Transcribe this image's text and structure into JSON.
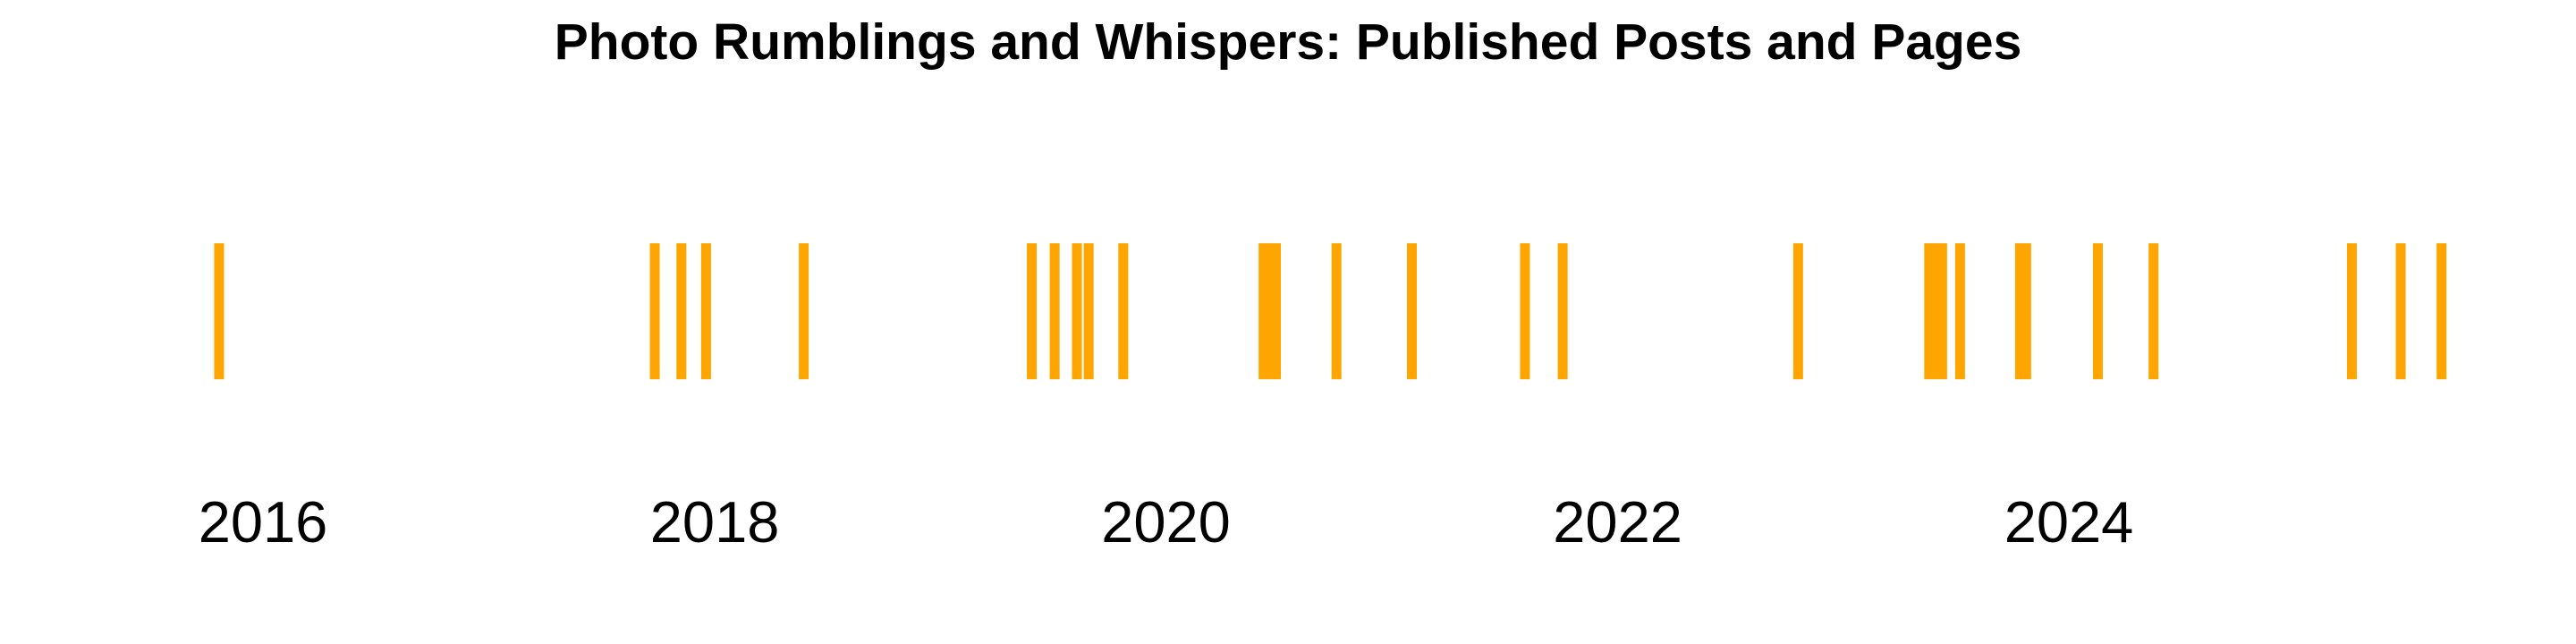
{
  "chart_data": {
    "type": "timeline",
    "title": "Photo Rumblings and Whispers: Published Posts and Pages",
    "xlabel": "",
    "ylabel": "",
    "grid": false,
    "legend": "none",
    "mark_color": "#FFA500",
    "x_ticks": [
      {
        "label": "2016",
        "value": "2016-01-01"
      },
      {
        "label": "2018",
        "value": "2018-01-01"
      },
      {
        "label": "2020",
        "value": "2020-01-01"
      },
      {
        "label": "2022",
        "value": "2022-01-01"
      },
      {
        "label": "2024",
        "value": "2024-01-01"
      }
    ],
    "xlim": [
      "2015-07-01",
      "2025-12-31"
    ],
    "events": [
      "2015-10-22",
      "2017-09-26",
      "2017-11-08",
      "2017-12-18",
      "2018-05-25",
      "2019-05-29",
      "2019-07-05",
      "2019-08-10",
      "2019-08-29",
      "2019-10-24",
      "2020-06-07",
      "2020-06-17",
      "2020-06-27",
      "2020-10-03",
      "2021-02-02",
      "2021-08-04",
      "2021-10-04",
      "2022-10-20",
      "2023-05-20",
      "2023-05-30",
      "2023-06-10",
      "2023-07-09",
      "2023-10-14",
      "2023-10-24",
      "2024-02-17",
      "2024-05-17",
      "2025-04-03",
      "2025-06-21",
      "2025-08-26"
    ]
  }
}
